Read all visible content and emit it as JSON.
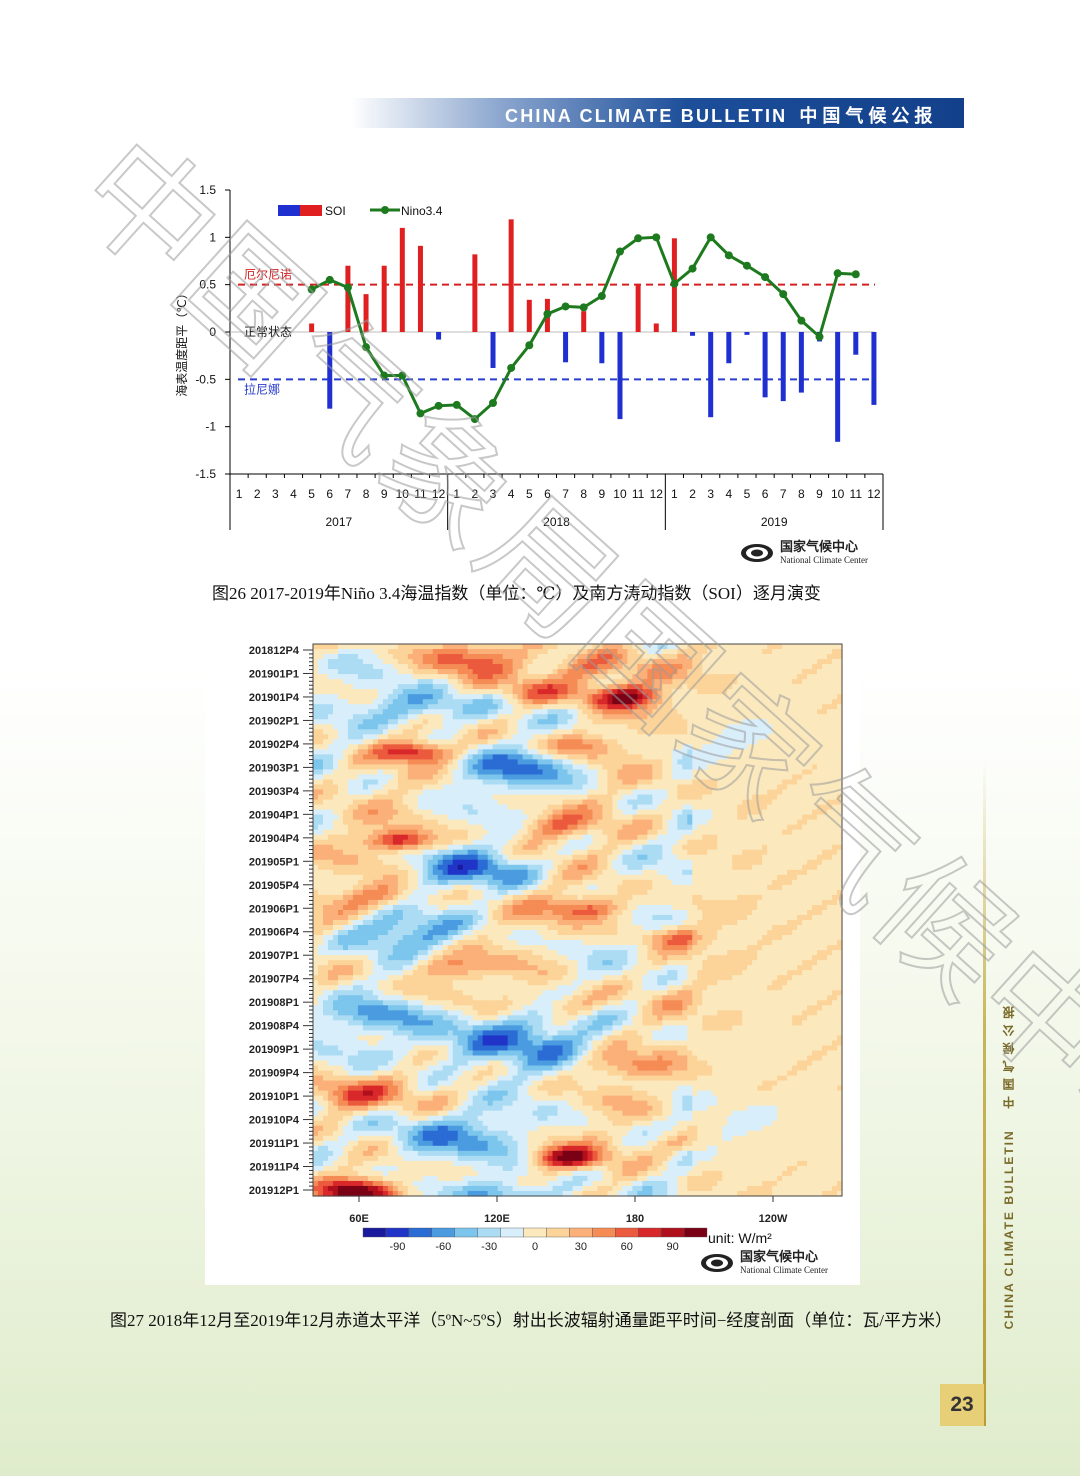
{
  "header": {
    "title_en": "CHINA CLIMATE BULLETIN",
    "title_cn": "中国气候公报"
  },
  "page_number": "23",
  "side_banner": {
    "en": "CHINA CLIMATE BULLETIN",
    "cn": "中国气候公报"
  },
  "watermark": "中国气象局国家气候中心",
  "logo": {
    "cn": "国家气候中心",
    "en": "National Climate Center"
  },
  "captions": {
    "fig26": "图26  2017-2019年Niño 3.4海温指数（单位：℃）及南方涛动指数（SOI）逐月演变",
    "fig27": "图27  2018年12月至2019年12月赤道太平洋（5ºN~5ºS）射出长波辐射通量距平时间−经度剖面（单位：瓦/平方米）"
  },
  "chart_data": [
    {
      "type": "bar+line",
      "ylabel": "海表温度距平（℃）",
      "ylim": [
        -1.5,
        1.5
      ],
      "yticks": [
        "1.5",
        "1",
        "0.5",
        "0",
        "-0.5",
        "-1",
        "-1.5"
      ],
      "ytick_values": [
        1.5,
        1,
        0.5,
        0,
        -0.5,
        -1,
        -1.5
      ],
      "x_month_labels": [
        "1",
        "2",
        "3",
        "4",
        "5",
        "6",
        "7",
        "8",
        "9",
        "10",
        "11",
        "12",
        "1",
        "2",
        "3",
        "4",
        "5",
        "6",
        "7",
        "8",
        "9",
        "10",
        "11",
        "12",
        "1",
        "2",
        "3",
        "4",
        "5",
        "6",
        "7",
        "8",
        "9",
        "10",
        "11",
        "12"
      ],
      "years": [
        "2017",
        "2018",
        "2019"
      ],
      "legend": {
        "soi": "SOI",
        "nino": "Nino3.4",
        "placement": "top-left"
      },
      "thresholds": [
        {
          "label": "厄尔尼诺",
          "value": 0.5,
          "color": "#d62020"
        },
        {
          "label": "正常状态",
          "value": 0,
          "color": "#000000"
        },
        {
          "label": "拉尼娜",
          "value": -0.5,
          "color": "#2a3dcc"
        }
      ],
      "series": [
        {
          "name": "SOI",
          "kind": "bar",
          "values": [
            0,
            0,
            0,
            0,
            0.09,
            -0.81,
            0.7,
            0.4,
            0.7,
            1.1,
            0.91,
            -0.08,
            0,
            0.82,
            -0.38,
            1.19,
            0.34,
            0.35,
            -0.32,
            0.22,
            -0.33,
            -0.92,
            0.5,
            0.09,
            0.99,
            -0.04,
            -0.9,
            -0.33,
            -0.03,
            -0.69,
            -0.73,
            -0.64,
            -0.1,
            -1.16,
            -0.24,
            -0.77
          ]
        },
        {
          "name": "Nino3.4",
          "kind": "line",
          "color": "#1e7a1e",
          "values": [
            null,
            null,
            null,
            null,
            0.45,
            0.55,
            0.47,
            -0.16,
            -0.46,
            -0.46,
            -0.86,
            -0.78,
            -0.77,
            -0.92,
            -0.75,
            -0.38,
            -0.14,
            0.19,
            0.27,
            0.26,
            0.38,
            0.85,
            0.99,
            1.0,
            0.51,
            0.67,
            1.0,
            0.81,
            0.7,
            0.58,
            0.4,
            0.12,
            -0.05,
            0.62,
            0.61,
            null
          ]
        }
      ]
    },
    {
      "type": "heatmap",
      "y_labels": [
        "201812P4",
        "201901P1",
        "201901P4",
        "201902P1",
        "201902P4",
        "201903P1",
        "201903P4",
        "201904P1",
        "201904P4",
        "201905P1",
        "201905P4",
        "201906P1",
        "201906P4",
        "201907P1",
        "201907P4",
        "201908P1",
        "201908P4",
        "201909P1",
        "201909P4",
        "201910P1",
        "201910P4",
        "201911P1",
        "201911P4",
        "201912P1"
      ],
      "x_labels": [
        "60E",
        "120E",
        "180",
        "120W"
      ],
      "x_label_positions_deg": [
        60,
        120,
        180,
        240
      ],
      "x_range_deg": [
        40,
        270
      ],
      "colorbar": {
        "ticks": [
          "-90",
          "-60",
          "-30",
          "0",
          "30",
          "60",
          "90"
        ],
        "colors": [
          "#7a0015",
          "#b0101c",
          "#d8282a",
          "#ec5a3e",
          "#f58b55",
          "#fab078",
          "#fcd49a",
          "#fbe9bd",
          "#d8eefb",
          "#abdcf4",
          "#7cc5ec",
          "#4a9be0",
          "#2a6bd4",
          "#2035c8",
          "#1a1a9c"
        ],
        "unit": "unit: W/m²"
      },
      "anomalies_description_note": "",
      "blobs": [
        {
          "lon": 175,
          "t": 2.2,
          "v": -70,
          "r": 0.9
        },
        {
          "lon": 160,
          "t": 1.0,
          "v": -40,
          "r": 1.3
        },
        {
          "lon": 108,
          "t": 0.6,
          "v": -35,
          "r": 1.2
        },
        {
          "lon": 138,
          "t": 2.0,
          "v": -35,
          "r": 1.0
        },
        {
          "lon": 85,
          "t": 4.5,
          "v": -60,
          "r": 0.8
        },
        {
          "lon": 155,
          "t": 4.2,
          "v": -35,
          "r": 1.0
        },
        {
          "lon": 78,
          "t": 8.2,
          "v": -60,
          "r": 0.8
        },
        {
          "lon": 145,
          "t": 7.6,
          "v": -30,
          "r": 1.0
        },
        {
          "lon": 70,
          "t": 10.5,
          "v": -35,
          "r": 1.0
        },
        {
          "lon": 160,
          "t": 11.0,
          "v": -45,
          "r": 1.0
        },
        {
          "lon": 200,
          "t": 12.2,
          "v": -35,
          "r": 0.8
        },
        {
          "lon": 100,
          "t": 13.5,
          "v": -30,
          "r": 1.0
        },
        {
          "lon": 150,
          "t": 15.0,
          "v": -30,
          "r": 1.0
        },
        {
          "lon": 55,
          "t": 18.8,
          "v": -45,
          "r": 1.2
        },
        {
          "lon": 175,
          "t": 17.6,
          "v": -30,
          "r": 1.0
        },
        {
          "lon": 150,
          "t": 21.4,
          "v": -70,
          "r": 0.8
        },
        {
          "lon": 60,
          "t": 22.8,
          "v": -75,
          "r": 0.9
        },
        {
          "lon": 200,
          "t": 20.8,
          "v": -25,
          "r": 0.8
        },
        {
          "lon": 90,
          "t": 2.6,
          "v": 45,
          "r": 1.4
        },
        {
          "lon": 130,
          "t": 5.2,
          "v": 40,
          "r": 1.6
        },
        {
          "lon": 112,
          "t": 9.4,
          "v": 45,
          "r": 1.5
        },
        {
          "lon": 80,
          "t": 12.0,
          "v": 40,
          "r": 1.4
        },
        {
          "lon": 120,
          "t": 16.5,
          "v": 45,
          "r": 2.2
        },
        {
          "lon": 95,
          "t": 20.5,
          "v": 40,
          "r": 1.8
        },
        {
          "lon": 130,
          "t": 23.0,
          "v": 40,
          "r": 1.3
        },
        {
          "lon": 68,
          "t": 15.5,
          "v": 30,
          "r": 1.2
        },
        {
          "lon": 225,
          "t": 4.0,
          "v": 25,
          "r": 1.5
        },
        {
          "lon": 230,
          "t": 20.0,
          "v": 20,
          "r": 1.8
        }
      ]
    }
  ]
}
